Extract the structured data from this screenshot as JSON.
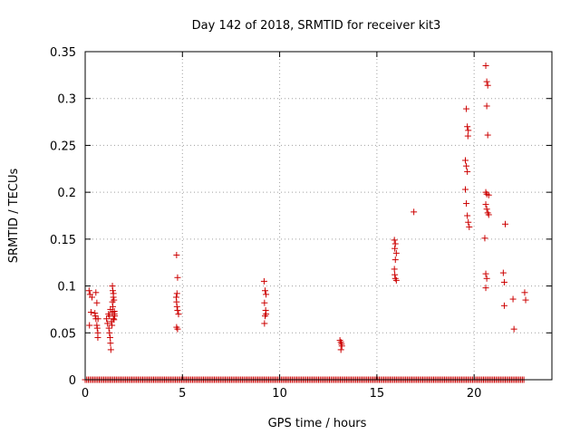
{
  "chart_data": {
    "type": "scatter",
    "title": "Day 142 of 2018, SRMTID for receiver kit3",
    "xlabel": "GPS time / hours",
    "ylabel": "SRMTID / TECUs",
    "xlim": [
      0,
      24
    ],
    "ylim": [
      0,
      0.35
    ],
    "xticks": [
      0,
      5,
      10,
      15,
      20
    ],
    "xtick_labels": [
      "0",
      "5",
      "10",
      "15",
      "20"
    ],
    "yticks": [
      0,
      0.05,
      0.1,
      0.15,
      0.2,
      0.25,
      0.3,
      0.35
    ],
    "ytick_labels": [
      "0",
      "0.05",
      "0.1",
      "0.15",
      "0.2",
      "0.25",
      "0.3",
      "0.35"
    ],
    "grid": true,
    "legend": false,
    "marker": "+",
    "color": "#cc0000",
    "zero_band": {
      "y": 0,
      "x_start": 0.0,
      "x_end": 22.6,
      "step": 0.08
    },
    "series": [
      {
        "name": "SRMTID",
        "points": [
          [
            0.2,
            0.095
          ],
          [
            0.25,
            0.091
          ],
          [
            0.3,
            0.072
          ],
          [
            0.22,
            0.058
          ],
          [
            0.35,
            0.088
          ],
          [
            0.5,
            0.071
          ],
          [
            0.52,
            0.068
          ],
          [
            0.55,
            0.065
          ],
          [
            0.55,
            0.093
          ],
          [
            0.6,
            0.082
          ],
          [
            0.6,
            0.058
          ],
          [
            0.62,
            0.055
          ],
          [
            0.65,
            0.05
          ],
          [
            0.65,
            0.045
          ],
          [
            0.66,
            0.065
          ],
          [
            1.1,
            0.065
          ],
          [
            1.15,
            0.06
          ],
          [
            1.2,
            0.07
          ],
          [
            1.22,
            0.055
          ],
          [
            1.25,
            0.05
          ],
          [
            1.28,
            0.045
          ],
          [
            1.3,
            0.039
          ],
          [
            1.32,
            0.032
          ],
          [
            1.25,
            0.068
          ],
          [
            1.3,
            0.075
          ],
          [
            1.35,
            0.062
          ],
          [
            1.38,
            0.058
          ],
          [
            1.4,
            0.1
          ],
          [
            1.42,
            0.095
          ],
          [
            1.45,
            0.092
          ],
          [
            1.48,
            0.085
          ],
          [
            1.45,
            0.088
          ],
          [
            1.4,
            0.083
          ],
          [
            1.42,
            0.078
          ],
          [
            1.5,
            0.073
          ],
          [
            1.52,
            0.068
          ],
          [
            1.45,
            0.065
          ],
          [
            1.5,
            0.07
          ],
          [
            1.4,
            0.072
          ],
          [
            1.48,
            0.064
          ],
          [
            4.7,
            0.133
          ],
          [
            4.75,
            0.109
          ],
          [
            4.72,
            0.092
          ],
          [
            4.68,
            0.088
          ],
          [
            4.7,
            0.083
          ],
          [
            4.72,
            0.078
          ],
          [
            4.75,
            0.074
          ],
          [
            4.8,
            0.07
          ],
          [
            4.7,
            0.056
          ],
          [
            4.75,
            0.054
          ],
          [
            9.2,
            0.105
          ],
          [
            9.25,
            0.095
          ],
          [
            9.3,
            0.091
          ],
          [
            9.22,
            0.082
          ],
          [
            9.28,
            0.074
          ],
          [
            9.3,
            0.07
          ],
          [
            9.25,
            0.068
          ],
          [
            9.22,
            0.06
          ],
          [
            13.1,
            0.042
          ],
          [
            13.15,
            0.04
          ],
          [
            13.18,
            0.038
          ],
          [
            13.2,
            0.036
          ],
          [
            13.15,
            0.032
          ],
          [
            15.9,
            0.149
          ],
          [
            15.95,
            0.145
          ],
          [
            15.92,
            0.14
          ],
          [
            16.0,
            0.135
          ],
          [
            15.95,
            0.128
          ],
          [
            15.9,
            0.118
          ],
          [
            15.92,
            0.112
          ],
          [
            15.95,
            0.108
          ],
          [
            16.0,
            0.106
          ],
          [
            16.9,
            0.179
          ],
          [
            19.6,
            0.289
          ],
          [
            19.65,
            0.27
          ],
          [
            19.7,
            0.266
          ],
          [
            19.68,
            0.26
          ],
          [
            19.55,
            0.234
          ],
          [
            19.6,
            0.228
          ],
          [
            19.65,
            0.222
          ],
          [
            19.55,
            0.203
          ],
          [
            19.6,
            0.188
          ],
          [
            19.65,
            0.175
          ],
          [
            19.7,
            0.168
          ],
          [
            19.75,
            0.163
          ],
          [
            20.6,
            0.335
          ],
          [
            20.65,
            0.318
          ],
          [
            20.7,
            0.314
          ],
          [
            20.65,
            0.292
          ],
          [
            20.7,
            0.261
          ],
          [
            20.6,
            0.2
          ],
          [
            20.65,
            0.198
          ],
          [
            20.75,
            0.197
          ],
          [
            20.6,
            0.187
          ],
          [
            20.65,
            0.182
          ],
          [
            20.7,
            0.178
          ],
          [
            20.75,
            0.176
          ],
          [
            20.55,
            0.151
          ],
          [
            20.6,
            0.113
          ],
          [
            20.65,
            0.108
          ],
          [
            20.6,
            0.098
          ],
          [
            21.5,
            0.114
          ],
          [
            21.55,
            0.104
          ],
          [
            21.6,
            0.166
          ],
          [
            21.55,
            0.079
          ],
          [
            22.0,
            0.086
          ],
          [
            22.05,
            0.054
          ],
          [
            22.6,
            0.093
          ],
          [
            22.65,
            0.085
          ]
        ]
      }
    ]
  }
}
